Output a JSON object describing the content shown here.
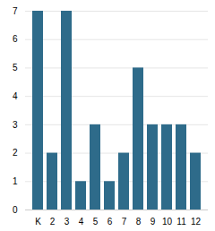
{
  "chart_data": {
    "type": "bar",
    "categories": [
      "K",
      "2",
      "3",
      "4",
      "5",
      "6",
      "7",
      "8",
      "9",
      "10",
      "11",
      "12"
    ],
    "values": [
      7,
      2,
      7,
      1,
      3,
      1,
      2,
      5,
      3,
      3,
      3,
      2
    ],
    "color": "#2e6b8a",
    "ylim": [
      0,
      7
    ],
    "yticks": [
      0,
      1,
      2,
      3,
      4,
      5,
      6,
      7
    ],
    "grid": true
  }
}
